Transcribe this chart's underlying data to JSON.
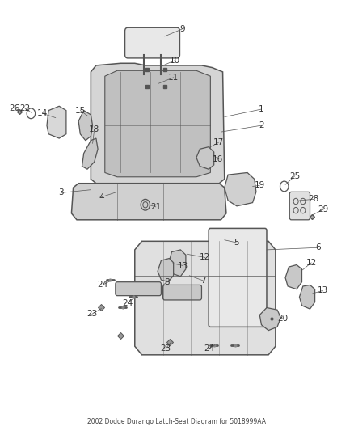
{
  "title": "2002 Dodge Durango Latch-Seat Diagram for 5018999AA",
  "bg_color": "#ffffff",
  "line_color": "#555555",
  "label_color": "#333333",
  "font_size": 7.5,
  "figsize": [
    4.38,
    5.33
  ],
  "dpi": 100
}
